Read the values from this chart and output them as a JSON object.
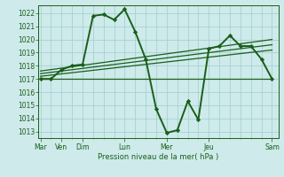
{
  "background_color": "#ceeaea",
  "grid_color": "#9ecece",
  "line_color": "#1a5e1a",
  "xlabel": "Pression niveau de la mer( hPa )",
  "ylim": [
    1012.5,
    1022.6
  ],
  "yticks": [
    1013,
    1014,
    1015,
    1016,
    1017,
    1018,
    1019,
    1020,
    1021,
    1022
  ],
  "major_xtick_positions": [
    0,
    1,
    2,
    4,
    6,
    8,
    11
  ],
  "major_xtick_labels": [
    "Mar",
    "Ven",
    "Dim",
    "Lun",
    "Mer",
    "Jeu",
    "Sam"
  ],
  "xlim": [
    -0.1,
    11.3
  ],
  "series": [
    {
      "x": [
        0,
        0.5,
        1,
        1.5,
        2,
        2.5,
        3,
        3.5,
        4,
        4.5,
        5,
        5.5,
        6,
        6.5,
        7,
        7.5,
        8,
        8.5,
        9,
        9.5,
        10,
        10.5,
        11
      ],
      "y": [
        1017.0,
        1017.0,
        1017.7,
        1018.0,
        1018.1,
        1021.8,
        1021.9,
        1021.5,
        1022.3,
        1020.6,
        1018.5,
        1014.7,
        1012.9,
        1013.1,
        1015.3,
        1013.9,
        1019.3,
        1019.5,
        1020.3,
        1019.5,
        1019.5,
        1018.5,
        1017.0
      ],
      "lw": 1.4,
      "marker": "D",
      "ms": 2.2
    },
    {
      "x": [
        0,
        11
      ],
      "y": [
        1017.0,
        1017.0
      ],
      "lw": 0.9,
      "marker": null
    },
    {
      "x": [
        0,
        11
      ],
      "y": [
        1017.2,
        1019.2
      ],
      "lw": 0.9,
      "marker": null
    },
    {
      "x": [
        0,
        11
      ],
      "y": [
        1017.4,
        1019.6
      ],
      "lw": 0.9,
      "marker": null
    },
    {
      "x": [
        0,
        11
      ],
      "y": [
        1017.6,
        1020.0
      ],
      "lw": 0.9,
      "marker": null
    }
  ]
}
